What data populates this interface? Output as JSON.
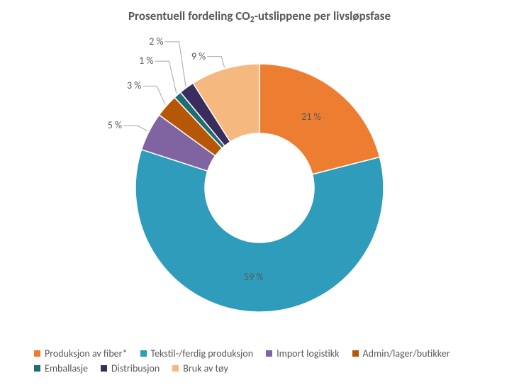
{
  "chart": {
    "type": "donut",
    "title_pre": "Prosentuell fordeling CO",
    "title_sub": "2",
    "title_post": "-utslippene per livsløpsfase",
    "title_fontsize": 17,
    "label_fontsize": 14,
    "legend_fontsize": 14,
    "background_color": "#ffffff",
    "text_color": "#595959",
    "inner_radius_ratio": 0.44,
    "slices": [
      {
        "label": "Produksjon av fiber*",
        "value": 21,
        "color": "#ed7d31",
        "label_text": "21 %"
      },
      {
        "label": "Tekstil-/ferdig produksjon",
        "value": 59,
        "color": "#2e9cba",
        "label_text": "59 %"
      },
      {
        "label": "Import logistikk",
        "value": 5,
        "color": "#8064a2",
        "label_text": "5 %"
      },
      {
        "label": "Admin/lager/butikker",
        "value": 3,
        "color": "#b65708",
        "label_text": "3 %"
      },
      {
        "label": "Emballasje",
        "value": 1,
        "color": "#1f6d70",
        "label_text": "1 %"
      },
      {
        "label": "Distribusjon",
        "value": 2,
        "color": "#3b2c5e",
        "label_text": "2 %"
      },
      {
        "label": "Bruk av tøy",
        "value": 9,
        "color": "#f5b97f",
        "label_text": "9 %"
      }
    ],
    "leader_line_color": "#a6a6a6",
    "start_angle_deg": -90
  }
}
